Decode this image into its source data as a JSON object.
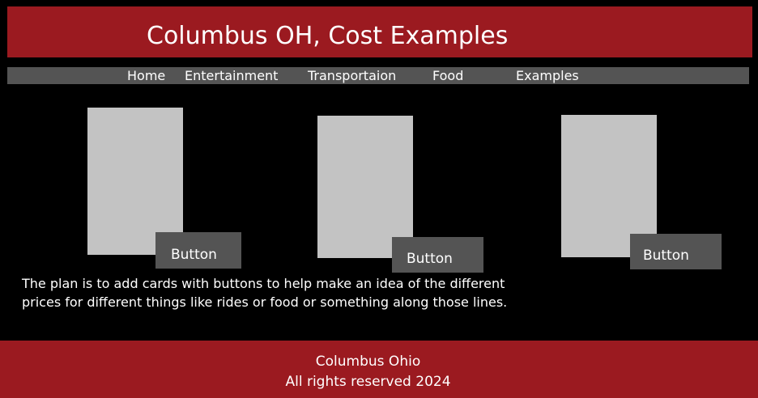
{
  "header": {
    "title": "Columbus OH, Cost Examples"
  },
  "nav": {
    "items": [
      {
        "label": "Home"
      },
      {
        "label": "Entertainment"
      },
      {
        "label": "Transportaion"
      },
      {
        "label": "Food"
      },
      {
        "label": "Examples"
      }
    ]
  },
  "cards": [
    {
      "button_label": "Button"
    },
    {
      "button_label": "Button"
    },
    {
      "button_label": "Button"
    }
  ],
  "main": {
    "description": "The plan is to add cards with buttons to help make an idea of the different prices for different things like rides or food or something along those lines."
  },
  "footer": {
    "line1": "Columbus Ohio",
    "line2": "All rights reserved 2024"
  },
  "colors": {
    "brand_red": "#9b1a20",
    "nav_gray": "#545454",
    "card_gray": "#c3c3c3",
    "background": "#000000"
  }
}
